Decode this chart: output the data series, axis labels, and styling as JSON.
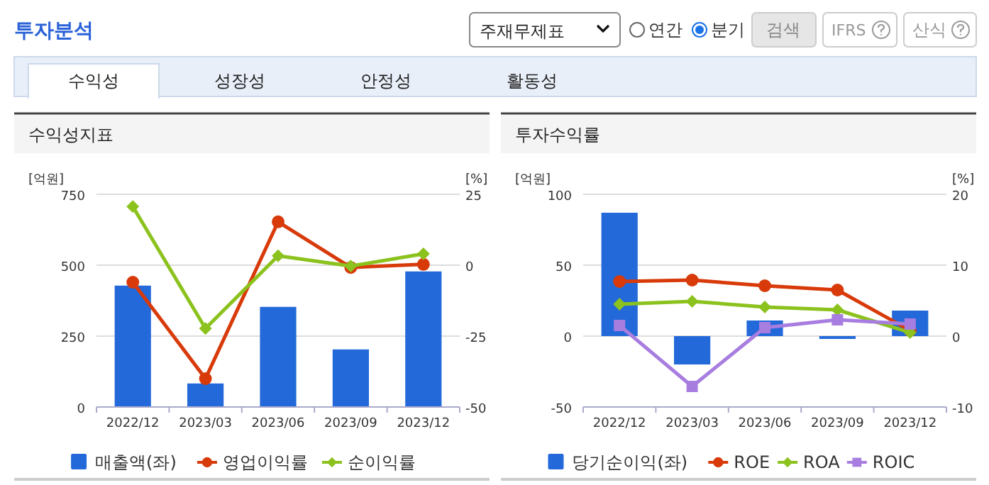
{
  "chart_data": [
    {
      "type": "other",
      "title": "투자분석",
      "annotations": [
        "주재무제표",
        "연간",
        "분기",
        "검색",
        "IFRS",
        "산식",
        "수익성",
        "성장성",
        "안정성",
        "활동성"
      ]
    },
    {
      "type": "bar",
      "title": "수익성지표",
      "ylabel": "[억원]",
      "y2label": "[%]",
      "categories": [
        "2022/12",
        "2023/03",
        "2023/06",
        "2023/09",
        "2023/12"
      ],
      "ylim": [
        0,
        750
      ],
      "yticks": [
        0,
        250,
        500,
        750
      ],
      "y2lim": [
        -50,
        25
      ],
      "y2ticks": [
        -50,
        -25,
        0,
        25
      ],
      "grid": "y",
      "legend": "bottom",
      "series": [
        {
          "name": "매출액(좌)",
          "type": "bar",
          "color": "#2369d9",
          "values": [
            428,
            83,
            353,
            203,
            478
          ]
        },
        {
          "name": "영업이익률",
          "type": "line",
          "axis": "y2",
          "marker": "circle",
          "color": "#d83a0a",
          "values": [
            -6,
            -40,
            15.3,
            -0.8,
            0.3
          ]
        },
        {
          "name": "순이익률",
          "type": "line",
          "axis": "y2",
          "marker": "diamond",
          "color": "#8cc21e",
          "values": [
            20.7,
            -22.3,
            3.3,
            -0.3,
            4
          ]
        }
      ]
    },
    {
      "type": "bar",
      "title": "투자수익률",
      "ylabel": "[억원]",
      "y2label": "[%]",
      "categories": [
        "2022/12",
        "2023/03",
        "2023/06",
        "2023/09",
        "2023/12"
      ],
      "ylim": [
        -50,
        100
      ],
      "yticks": [
        -50,
        0,
        50,
        100
      ],
      "y2lim": [
        -10,
        20
      ],
      "y2ticks": [
        -10,
        0,
        10,
        20
      ],
      "grid": "y",
      "legend": "bottom",
      "series": [
        {
          "name": "당기순이익(좌)",
          "type": "bar",
          "color": "#2369d9",
          "values": [
            87,
            -20,
            11,
            -2,
            18
          ]
        },
        {
          "name": "ROE",
          "type": "line",
          "axis": "y2",
          "marker": "circle",
          "color": "#d83a0a",
          "values": [
            7.7,
            7.9,
            7.1,
            6.5,
            0.8
          ]
        },
        {
          "name": "ROA",
          "type": "line",
          "axis": "y2",
          "marker": "diamond",
          "color": "#8cc21e",
          "values": [
            4.5,
            4.9,
            4.1,
            3.7,
            0.5
          ]
        },
        {
          "name": "ROIC",
          "type": "line",
          "axis": "y2",
          "marker": "square",
          "color": "#a87de0",
          "values": [
            1.5,
            -7.1,
            1.2,
            2.3,
            1.7
          ]
        }
      ]
    }
  ]
}
